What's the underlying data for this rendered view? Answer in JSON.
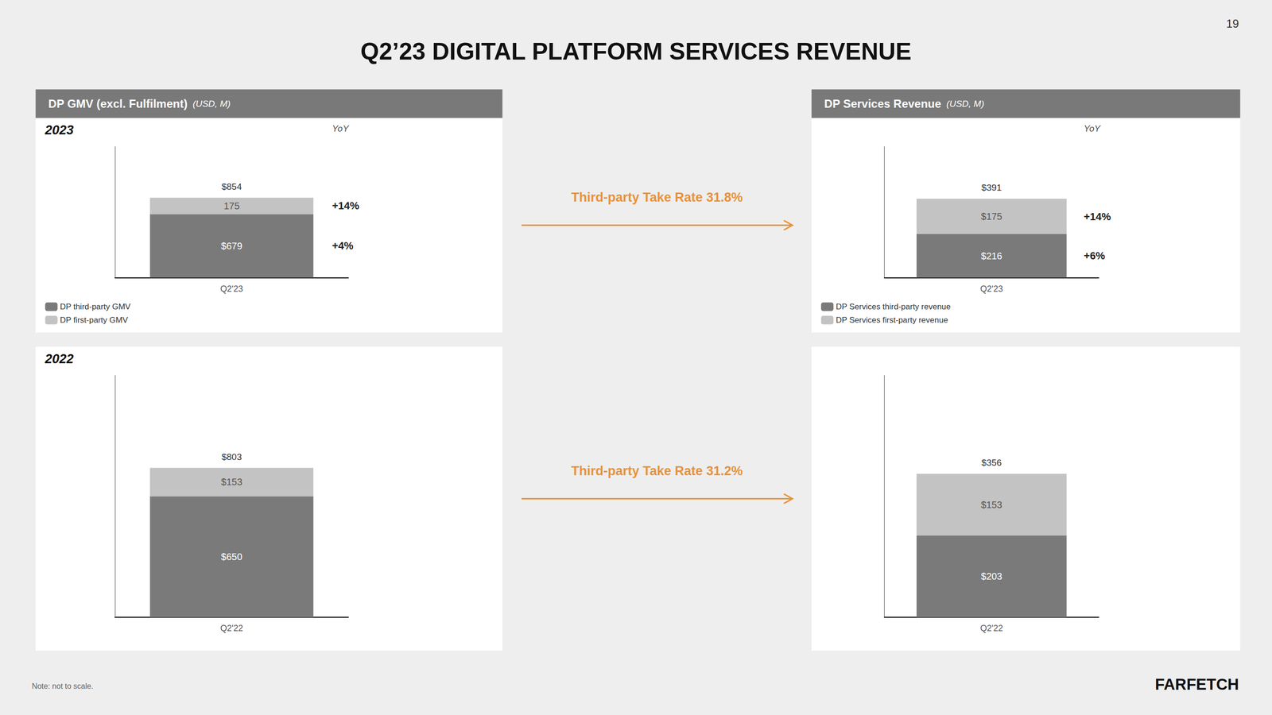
{
  "title": "Q2’23 DIGITAL PLATFORM SERVICES REVENUE",
  "page_number": "19",
  "headers": [
    {
      "label": "DP GMV (excl. Fulfilment)",
      "unit": "(USD, M)"
    },
    {
      "label": "DP Services Revenue",
      "unit": "(USD, M)"
    }
  ],
  "annotations": [
    {
      "text": "Third-party Take Rate 31.8%",
      "color": "#e8923a"
    },
    {
      "text": "Third-party Take Rate 31.2%",
      "color": "#e8923a"
    }
  ],
  "note": "Note: not to scale.",
  "brand": "FARFETCH",
  "chart_data": [
    {
      "type": "bar",
      "stacked": true,
      "subtitle": "2023",
      "categories": [
        "Q2'23"
      ],
      "ylim": [
        0,
        1400
      ],
      "tick_labels": "x",
      "data_labels": true,
      "legend": "lower left",
      "grid": false,
      "yoy_header": "YoY",
      "total_labels": [
        "$854"
      ],
      "series": [
        {
          "name": "DP third-party GMV",
          "color": "#7a7a7a",
          "values": [
            679
          ],
          "value_labels": [
            "$679"
          ],
          "yoy": [
            "+4%"
          ]
        },
        {
          "name": "DP first-party GMV",
          "color": "#c4c3c3",
          "values": [
            175
          ],
          "value_labels": [
            "175"
          ],
          "yoy": [
            "+14%"
          ]
        }
      ]
    },
    {
      "type": "bar",
      "stacked": true,
      "categories": [
        "Q2'23"
      ],
      "ylim": [
        0,
        650
      ],
      "tick_labels": "x",
      "data_labels": true,
      "legend": "lower left",
      "grid": false,
      "yoy_header": "YoY",
      "total_labels": [
        "$391"
      ],
      "series": [
        {
          "name": "DP Services third-party revenue",
          "color": "#7a7a7a",
          "values": [
            216
          ],
          "value_labels": [
            "$216"
          ],
          "yoy": [
            "+6%"
          ]
        },
        {
          "name": "DP Services first-party revenue",
          "color": "#c4c3c3",
          "values": [
            175
          ],
          "value_labels": [
            "$175"
          ],
          "yoy": [
            "+14%"
          ]
        }
      ]
    },
    {
      "type": "bar",
      "stacked": true,
      "subtitle": "2022",
      "categories": [
        "Q2'22"
      ],
      "ylim": [
        0,
        1300
      ],
      "tick_labels": "x",
      "data_labels": true,
      "legend": false,
      "grid": false,
      "total_labels": [
        "$803"
      ],
      "series": [
        {
          "color": "#7a7a7a",
          "values": [
            650
          ],
          "value_labels": [
            "$650"
          ]
        },
        {
          "color": "#c4c3c3",
          "values": [
            153
          ],
          "value_labels": [
            "$153"
          ]
        }
      ]
    },
    {
      "type": "bar",
      "stacked": true,
      "categories": [
        "Q2'22"
      ],
      "ylim": [
        0,
        600
      ],
      "tick_labels": "x",
      "data_labels": true,
      "legend": false,
      "grid": false,
      "total_labels": [
        "$356"
      ],
      "series": [
        {
          "color": "#7a7a7a",
          "values": [
            203
          ],
          "value_labels": [
            "$203"
          ]
        },
        {
          "color": "#c4c3c3",
          "values": [
            153
          ],
          "value_labels": [
            "$153"
          ]
        }
      ]
    }
  ]
}
